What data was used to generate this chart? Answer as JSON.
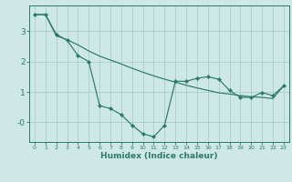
{
  "xlabel": "Humidex (Indice chaleur)",
  "bg_color": "#cde8e5",
  "grid_color": "#a8ceca",
  "line_color": "#2d7a6a",
  "xlim": [
    -0.5,
    23.5
  ],
  "ylim": [
    -0.65,
    3.85
  ],
  "x_data": [
    0,
    1,
    2,
    3,
    4,
    5,
    6,
    7,
    8,
    9,
    10,
    11,
    12,
    13,
    14,
    15,
    16,
    17,
    18,
    19,
    20,
    21,
    22,
    23
  ],
  "y_main": [
    3.55,
    3.55,
    2.9,
    2.7,
    2.2,
    2.0,
    0.55,
    0.45,
    0.25,
    -0.1,
    -0.38,
    -0.48,
    -0.1,
    1.35,
    1.35,
    1.45,
    1.5,
    1.42,
    1.05,
    0.82,
    0.82,
    0.98,
    0.88,
    1.2
  ],
  "y_linear": [
    3.55,
    3.55,
    2.85,
    2.72,
    2.55,
    2.35,
    2.18,
    2.05,
    1.92,
    1.78,
    1.65,
    1.53,
    1.42,
    1.32,
    1.22,
    1.13,
    1.05,
    0.97,
    0.93,
    0.88,
    0.84,
    0.82,
    0.78,
    1.2
  ]
}
